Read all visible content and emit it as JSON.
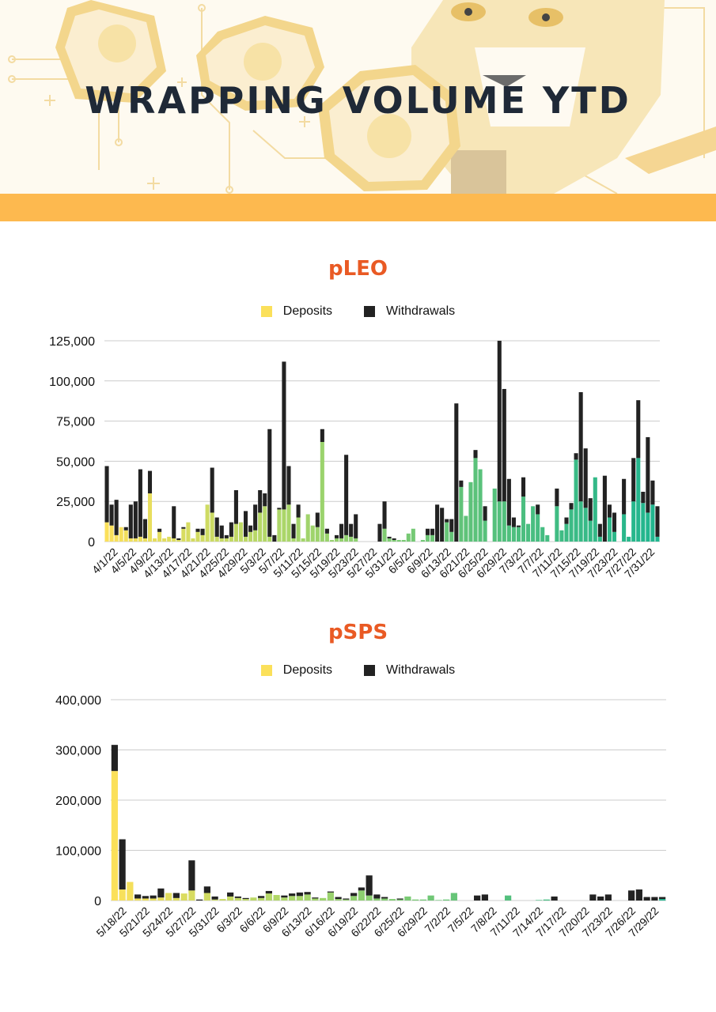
{
  "page_title": "WRAPPING VOLUME YTD",
  "colors": {
    "accent_stripe": "#fdb94f",
    "title": "#e95a24",
    "deposits_legend": "#fbe05a",
    "withdrawals_legend": "#222222",
    "deposit_gradient": [
      "#fbe05a",
      "#a8d66a",
      "#5cc27a",
      "#1fb58f"
    ]
  },
  "chart_data": [
    {
      "type": "bar",
      "stacked": true,
      "title": "pLEO",
      "legend_position": "top-center",
      "grid": true,
      "ylim": [
        0,
        125000
      ],
      "y_ticks": [
        "0",
        "25,000",
        "50,000",
        "75,000",
        "100,000",
        "125,000"
      ],
      "x_tick_labels": [
        "4/1/22",
        "4/5/22",
        "4/9/22",
        "4/13/22",
        "4/17/22",
        "4/21/22",
        "4/25/22",
        "4/29/22",
        "5/3/22",
        "5/7/22",
        "5/11/22",
        "5/15/22",
        "5/19/22",
        "5/23/22",
        "5/27/22",
        "5/31/22",
        "6/5/22",
        "6/9/22",
        "6/13/22",
        "6/21/22",
        "6/25/22",
        "6/29/22",
        "7/3/22",
        "7/7/22",
        "7/11/22",
        "7/15/22",
        "7/19/22",
        "7/23/22",
        "7/27/22",
        "7/31/22"
      ],
      "series": [
        {
          "name": "Deposits",
          "values": [
            12000,
            10000,
            4000,
            9000,
            7000,
            2000,
            2000,
            3000,
            2000,
            30000,
            2000,
            6000,
            2000,
            3000,
            2000,
            1000,
            8000,
            12000,
            2000,
            6000,
            4000,
            23000,
            18000,
            3000,
            2000,
            2000,
            3000,
            11000,
            12000,
            3000,
            6000,
            7000,
            18000,
            22000,
            3000,
            0,
            20000,
            20000,
            23000,
            2000,
            15000,
            2000,
            17000,
            10000,
            9000,
            62000,
            5000,
            1000,
            2000,
            2000,
            4000,
            3000,
            2000,
            0,
            0,
            0,
            0,
            0,
            8000,
            2000,
            1000,
            1000,
            1000,
            5000,
            8000,
            0,
            1000,
            4000,
            4000,
            0,
            0,
            12000,
            6000,
            0,
            34000,
            16000,
            37000,
            52000,
            45000,
            13000,
            0,
            33000,
            25000,
            25000,
            10000,
            9000,
            9000,
            28000,
            11000,
            22000,
            17000,
            9000,
            4000,
            0,
            22000,
            7000,
            11000,
            20000,
            51000,
            25000,
            21000,
            13000,
            40000,
            3000,
            0,
            15000,
            6000,
            0,
            17000,
            3000,
            25000,
            52000,
            24000,
            18000,
            23000,
            3000
          ]
        },
        {
          "name": "Withdrawals",
          "values": [
            35000,
            13000,
            22000,
            0,
            2000,
            21000,
            23000,
            42000,
            12000,
            14000,
            0,
            2000,
            0,
            0,
            20000,
            1000,
            1000,
            0,
            0,
            2000,
            4000,
            0,
            28000,
            12000,
            8000,
            2000,
            9000,
            21000,
            0,
            16000,
            4000,
            16000,
            14000,
            8000,
            67000,
            4000,
            1000,
            92000,
            24000,
            9000,
            8000,
            0,
            0,
            0,
            9000,
            8000,
            3000,
            0,
            2000,
            9000,
            50000,
            8000,
            15000,
            0,
            0,
            0,
            0,
            11000,
            17000,
            1000,
            1000,
            0,
            0,
            0,
            0,
            0,
            0,
            4000,
            4000,
            23000,
            21000,
            2000,
            8000,
            86000,
            4000,
            0,
            0,
            5000,
            0,
            9000,
            0,
            0,
            100000,
            70000,
            29000,
            6000,
            1000,
            12000,
            0,
            0,
            6000,
            0,
            0,
            0,
            11000,
            0,
            4000,
            4000,
            4000,
            68000,
            37000,
            14000,
            0,
            8000,
            41000,
            8000,
            12000,
            0,
            22000,
            0,
            27000,
            36000,
            7000,
            47000,
            15000,
            19000,
            3000
          ]
        }
      ]
    },
    {
      "type": "bar",
      "stacked": true,
      "title": "pSPS",
      "legend_position": "top-center",
      "grid": true,
      "ylim": [
        0,
        400000
      ],
      "y_ticks": [
        "0",
        "100,000",
        "200,000",
        "300,000",
        "400,000"
      ],
      "x_tick_labels": [
        "5/18/22",
        "5/21/22",
        "5/24/22",
        "5/27/22",
        "5/31/22",
        "6/3/22",
        "6/6/22",
        "6/9/22",
        "6/13/22",
        "6/16/22",
        "6/19/22",
        "6/22/22",
        "6/25/22",
        "6/29/22",
        "7/2/22",
        "7/5/22",
        "7/8/22",
        "7/11/22",
        "7/14/22",
        "7/17/22",
        "7/20/22",
        "7/23/22",
        "7/26/22",
        "7/29/22"
      ],
      "series": [
        {
          "name": "Deposits",
          "values": [
            258000,
            22000,
            37000,
            4000,
            4000,
            4000,
            6000,
            15000,
            5000,
            14000,
            20000,
            0,
            15000,
            2000,
            3000,
            8000,
            5000,
            3000,
            6000,
            5000,
            14000,
            11000,
            6000,
            9000,
            9000,
            12000,
            4000,
            5000,
            16000,
            3000,
            2000,
            9000,
            20000,
            10000,
            4000,
            4000,
            3000,
            2000,
            8000,
            2000,
            2000,
            10000,
            1000,
            2000,
            15000,
            0,
            0,
            0,
            0,
            0,
            0,
            10000,
            0,
            0,
            0,
            1000,
            2000,
            0,
            0,
            0,
            0,
            0,
            0,
            0,
            0,
            0,
            0,
            0,
            0,
            0,
            0,
            3000
          ]
        },
        {
          "name": "Withdrawals",
          "values": [
            52000,
            100000,
            0,
            8000,
            5000,
            6000,
            18000,
            0,
            10000,
            0,
            60000,
            2000,
            13000,
            6000,
            0,
            8000,
            3000,
            2000,
            0,
            4000,
            5000,
            0,
            4000,
            5000,
            7000,
            5000,
            2000,
            0,
            2000,
            4000,
            2000,
            6000,
            6000,
            40000,
            8000,
            3000,
            0,
            2000,
            0,
            0,
            0,
            0,
            0,
            0,
            0,
            0,
            0,
            10000,
            12000,
            0,
            0,
            0,
            0,
            0,
            0,
            0,
            0,
            8000,
            0,
            0,
            0,
            0,
            12000,
            8000,
            12000,
            0,
            0,
            20000,
            22000,
            7000,
            7000,
            4000
          ]
        }
      ]
    }
  ]
}
